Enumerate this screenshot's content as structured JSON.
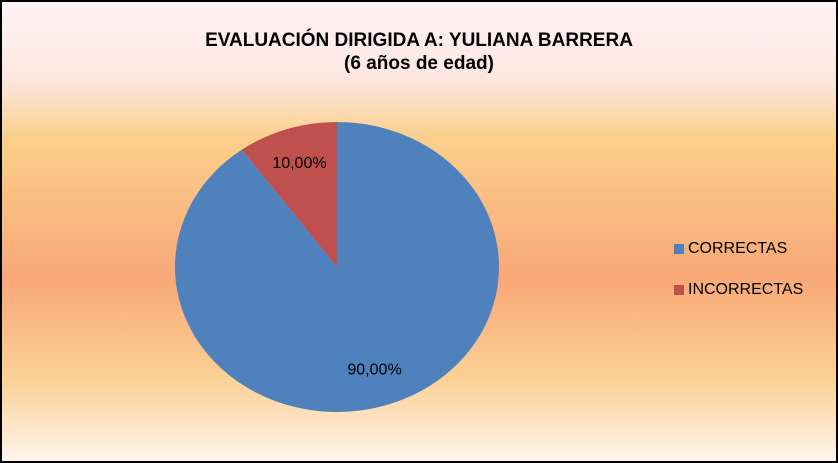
{
  "chart_data": {
    "type": "pie",
    "title": "EVALUACIÓN DIRIGIDA A: YULIANA BARRERA",
    "subtitle": "(6 años de edad)",
    "categories": [
      "CORRECTAS",
      "INCORRECTAS"
    ],
    "values": [
      90,
      10
    ],
    "value_labels": [
      "90,00%",
      "10,00%"
    ],
    "colors": [
      "#4f81bd",
      "#c0504d"
    ],
    "legend": "right"
  }
}
